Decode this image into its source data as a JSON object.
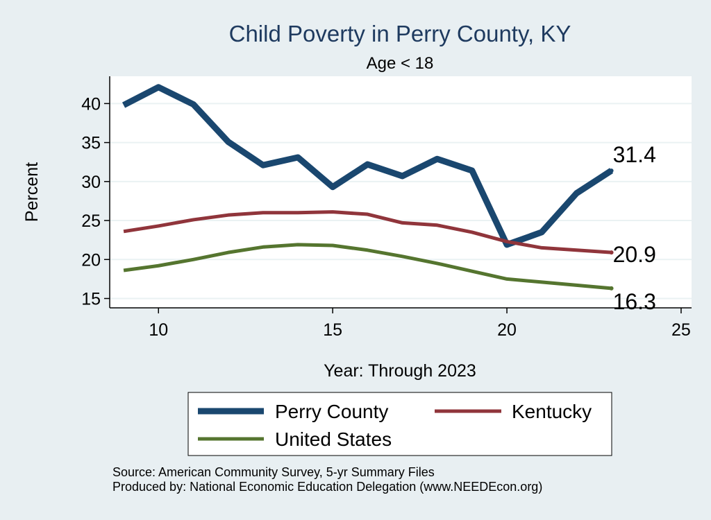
{
  "chart_data": {
    "type": "line",
    "title": "Child Poverty in Perry County, KY",
    "subtitle": "Age < 18",
    "xlabel": "Year: Through 2023",
    "ylabel": "Percent",
    "xlim": [
      8.6,
      25.3
    ],
    "ylim": [
      13.8,
      43.5
    ],
    "xticks": [
      10,
      15,
      20,
      25
    ],
    "yticks": [
      15,
      20,
      25,
      30,
      35,
      40
    ],
    "grid": true,
    "legend_position": "bottom",
    "x": [
      9,
      10,
      11,
      12,
      13,
      14,
      15,
      16,
      17,
      18,
      19,
      20,
      21,
      22,
      23
    ],
    "series": [
      {
        "name": "Perry County",
        "color": "#1a476f",
        "values": [
          39.8,
          42.1,
          39.9,
          35.1,
          32.1,
          33.1,
          29.3,
          32.2,
          30.7,
          32.9,
          31.4,
          21.9,
          23.5,
          28.5,
          31.4
        ],
        "end_label": "31.4"
      },
      {
        "name": "Kentucky",
        "color": "#90353b",
        "values": [
          23.6,
          24.3,
          25.1,
          25.7,
          26.0,
          26.0,
          26.1,
          25.8,
          24.7,
          24.4,
          23.5,
          22.3,
          21.5,
          21.2,
          20.9
        ],
        "end_label": "20.9"
      },
      {
        "name": "United States",
        "color": "#55752f",
        "values": [
          18.6,
          19.2,
          20.0,
          20.9,
          21.6,
          21.9,
          21.8,
          21.2,
          20.4,
          19.5,
          18.5,
          17.5,
          17.1,
          16.7,
          16.3
        ],
        "end_label": "16.3"
      }
    ]
  },
  "source_text": "Source: American Community Survey, 5-yr Summary Files",
  "produced_text": "Produced by: National Economic Education Delegation (www.NEEDEcon.org)"
}
